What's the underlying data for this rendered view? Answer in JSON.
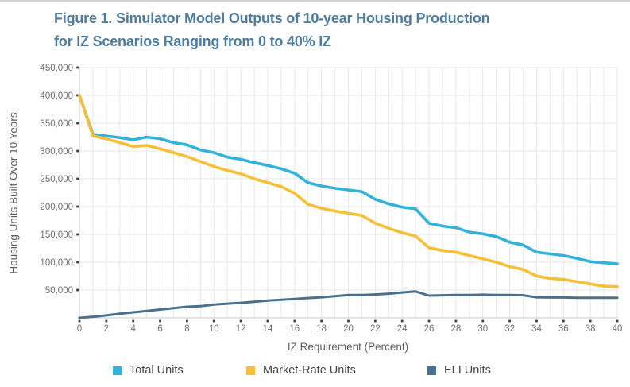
{
  "figure": {
    "title_line1": "Figure 1. Simulator Model Outputs of 10-year Housing Production",
    "title_line2": "for IZ Scenarios Ranging from 0 to 40% IZ",
    "title_color": "#4e7ba0"
  },
  "chart_data": {
    "type": "line",
    "title": "Figure 1. Simulator Model Outputs of 10-year Housing Production for IZ Scenarios Ranging from 0 to 40% IZ",
    "xlabel": "IZ Requirement (Percent)",
    "ylabel": "Housing Units  Built Over 10 Years",
    "xlim": [
      0,
      40
    ],
    "ylim": [
      0,
      450000
    ],
    "grid": true,
    "legend_position": "bottom",
    "x_tick_step": 2,
    "x_tick_labels": [
      "0",
      "2",
      "4",
      "6",
      "8",
      "10",
      "12",
      "14",
      "16",
      "18",
      "20",
      "22",
      "24",
      "26",
      "28",
      "30",
      "32",
      "34",
      "36",
      "38",
      "40"
    ],
    "y_tick_labels": [
      "50,000",
      "100,000",
      "150,000",
      "200,000",
      "250,000",
      "300,000",
      "350,000",
      "400,000",
      "450,000"
    ],
    "y_ticks": [
      50000,
      100000,
      150000,
      200000,
      250000,
      300000,
      350000,
      400000,
      450000
    ],
    "x": [
      0,
      1,
      2,
      3,
      4,
      5,
      6,
      7,
      8,
      9,
      10,
      11,
      12,
      13,
      14,
      15,
      16,
      17,
      18,
      19,
      20,
      21,
      22,
      23,
      24,
      25,
      26,
      27,
      28,
      29,
      30,
      31,
      32,
      33,
      34,
      35,
      36,
      37,
      38,
      39,
      40
    ],
    "series": [
      {
        "name": "Total Units",
        "color": "#31b2dc",
        "values": [
          400000,
          330000,
          327000,
          324000,
          320000,
          325000,
          322000,
          315000,
          311000,
          302000,
          297000,
          289000,
          285000,
          279000,
          274000,
          268000,
          260000,
          243000,
          237000,
          233000,
          230000,
          227000,
          213000,
          205000,
          199000,
          196000,
          170000,
          165000,
          162000,
          154000,
          151000,
          146000,
          136000,
          131000,
          118000,
          115000,
          112000,
          107000,
          101000,
          99000,
          97000
        ]
      },
      {
        "name": "Market-Rate Units",
        "color": "#f6bf35",
        "values": [
          400000,
          327000,
          322000,
          315000,
          308000,
          310000,
          304000,
          297000,
          290000,
          281000,
          272000,
          265000,
          259000,
          250000,
          243000,
          236000,
          224000,
          204000,
          197000,
          192000,
          188000,
          184000,
          170000,
          161000,
          153000,
          147000,
          126000,
          121000,
          118000,
          112000,
          106000,
          100000,
          92000,
          87000,
          75000,
          71000,
          69000,
          65000,
          61000,
          57000,
          56000
        ]
      },
      {
        "name": "ELI Units",
        "color": "#49708e",
        "values": [
          0,
          2000,
          4500,
          7500,
          10000,
          12500,
          15000,
          17500,
          20000,
          21000,
          24000,
          25500,
          27000,
          29000,
          31000,
          32500,
          34000,
          35500,
          37000,
          39000,
          41000,
          41000,
          42000,
          43500,
          45500,
          47500,
          40000,
          40500,
          41000,
          41000,
          41500,
          41000,
          41000,
          40500,
          37000,
          36500,
          36500,
          36000,
          36000,
          36000,
          36000
        ]
      }
    ],
    "style": {
      "gridline_color": "#e7e7e7",
      "axis_line_color": "#c9c9c9",
      "tick_mark_color": "#3f3f3f",
      "tick_label_color": "#6f6f6f"
    }
  }
}
